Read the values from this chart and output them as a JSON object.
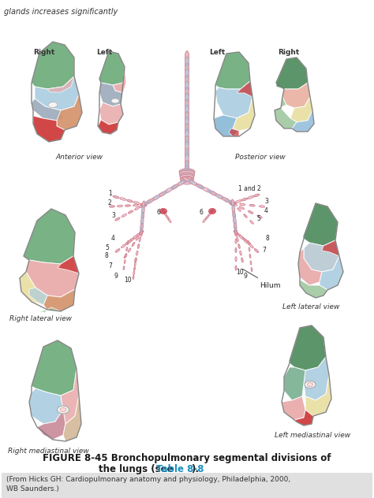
{
  "background_color": "#ffffff",
  "header_text": "glands increases significantly",
  "figure_caption_line1": "FIGURE 8-45 Bronchopulmonary segmental divisions of",
  "figure_caption_line2": "the lungs (see ",
  "figure_caption_link": "Table 8-8",
  "figure_caption_end": ").",
  "source_text": "(From Hicks GH: Cardiopulmonary anatomy and physiology, Philadelphia, 2000,\nWB Saunders.)",
  "label_anterior": "Anterior view",
  "label_posterior": "Posterior view",
  "label_right_lateral": "Right lateral view",
  "label_left_lateral": "Left lateral view",
  "label_right_mediastinal": "Right mediastinal view",
  "label_left_mediastinal": "Left mediastinal view",
  "label_right1": "Right",
  "label_left1": "Left",
  "label_left2": "Left",
  "label_right2": "Right",
  "label_hilum": "Hilum",
  "caption_color": "#1a1a1a",
  "link_color": "#1a8fc1",
  "source_bg": "#e0e0e0",
  "font_size_labels": 6.5,
  "font_size_numbers": 5.5,
  "font_size_caption": 8.5,
  "font_size_source": 6.5,
  "c_green": "#6aaa78",
  "c_dkgreen": "#4a8a5a",
  "c_pink": "#e8a8a8",
  "c_red": "#cc3333",
  "c_blue": "#88b8d8",
  "c_ltblue": "#aacce0",
  "c_gray": "#9aaabb",
  "c_ltgray": "#b8c8d2",
  "c_orange": "#d49068",
  "c_ltyellow": "#e8dea0",
  "c_ltgreen": "#a0c8a0",
  "c_tan": "#d4b898",
  "c_mauve": "#c88898",
  "c_salmon": "#e8b0a0",
  "c_teal": "#78b090",
  "c_white": "#f5f5f5",
  "c_red2": "#d44040"
}
